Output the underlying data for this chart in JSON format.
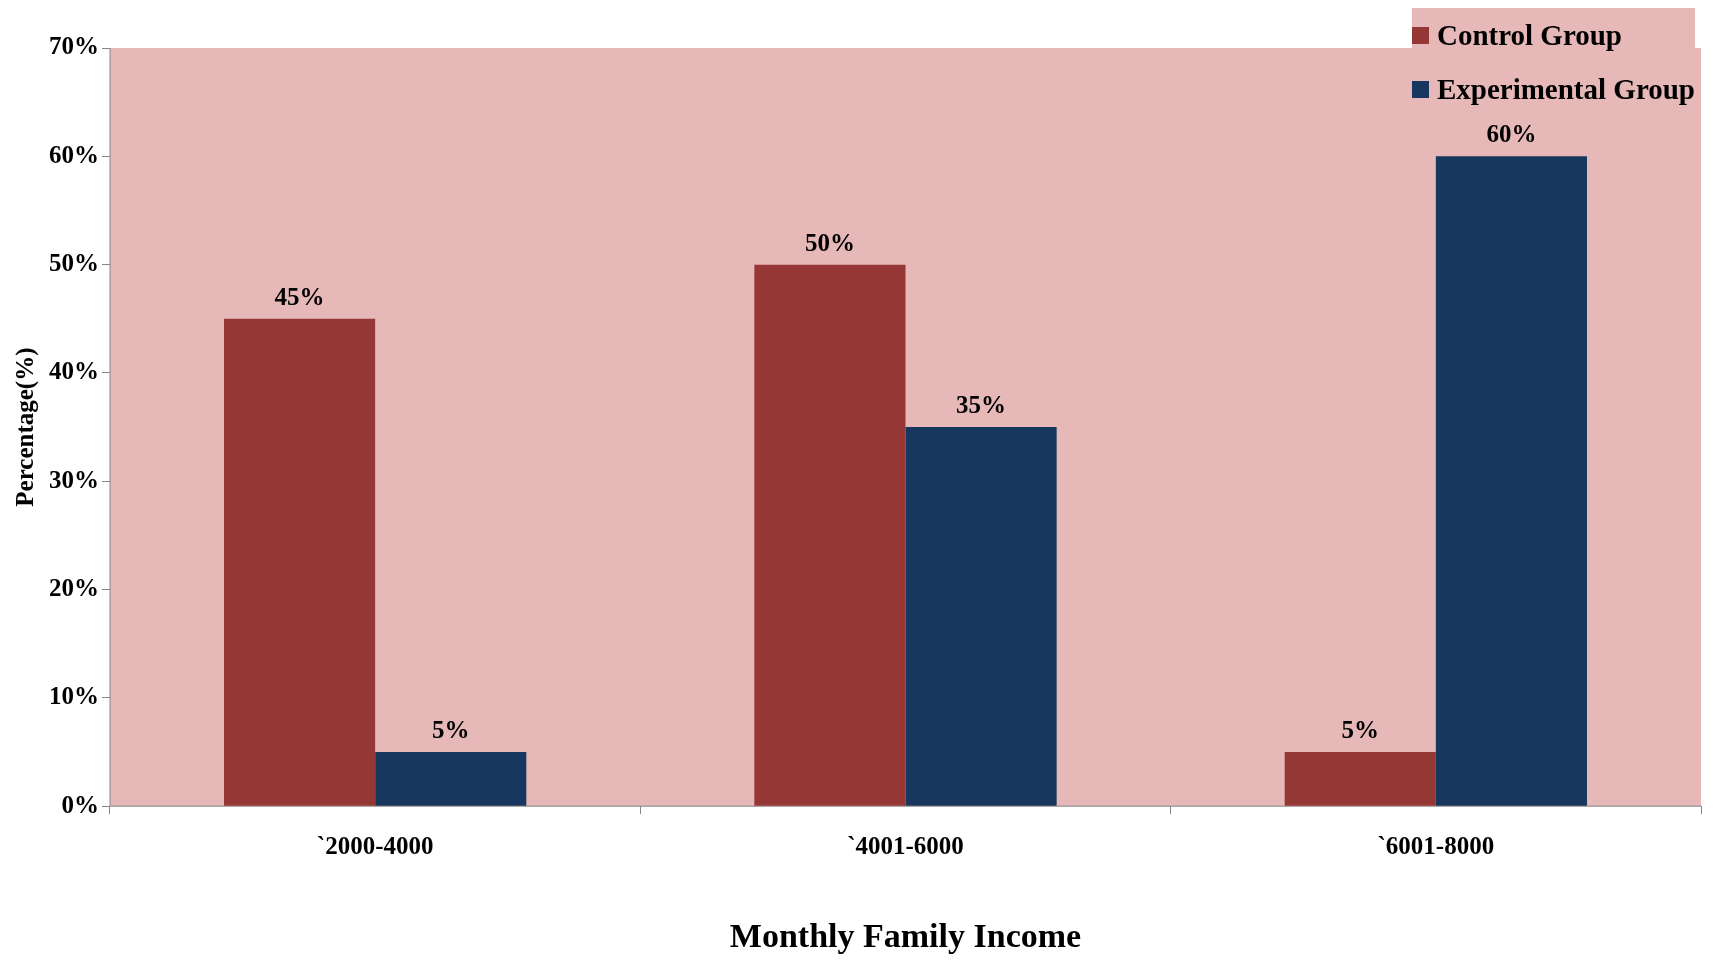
{
  "chart_data": {
    "type": "bar",
    "xlabel": "Monthly Family Income",
    "ylabel": "Percentage(%)",
    "categories": [
      "`2000-4000",
      "`4001-6000",
      "`6001-8000"
    ],
    "series": [
      {
        "name": "Control Group",
        "color": "#953735",
        "values": [
          45,
          50,
          5
        ],
        "value_labels": [
          "45%",
          "50%",
          "5%"
        ]
      },
      {
        "name": "Experimental Group",
        "color": "#17375e",
        "values": [
          5,
          35,
          60
        ],
        "value_labels": [
          "5%",
          "35%",
          "60%"
        ]
      }
    ],
    "ylim": [
      0,
      70
    ],
    "yticks": [
      {
        "value": 0,
        "label": "0%"
      },
      {
        "value": 10,
        "label": "10%"
      },
      {
        "value": 20,
        "label": "20%"
      },
      {
        "value": 30,
        "label": "30%"
      },
      {
        "value": 40,
        "label": "40%"
      },
      {
        "value": 50,
        "label": "50%"
      },
      {
        "value": 60,
        "label": "60%"
      },
      {
        "value": 70,
        "label": "70%"
      }
    ],
    "grid": false,
    "legend": "top right"
  }
}
